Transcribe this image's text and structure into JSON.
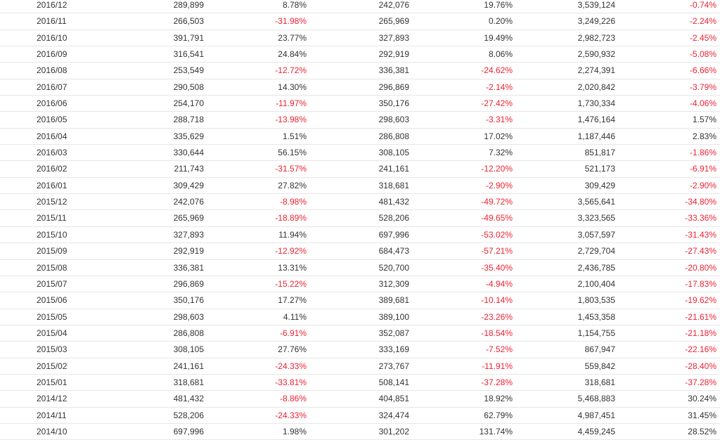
{
  "colors": {
    "text": "#333333",
    "negative": "#ee2233",
    "border": "#e6e6e6"
  },
  "rows": [
    [
      "2016/12",
      "289,899",
      "8.78%",
      "242,076",
      "19.76%",
      "3,539,124",
      "-0.74%"
    ],
    [
      "2016/11",
      "266,503",
      "-31.98%",
      "265,969",
      "0.20%",
      "3,249,226",
      "-2.24%"
    ],
    [
      "2016/10",
      "391,791",
      "23.77%",
      "327,893",
      "19.49%",
      "2,982,723",
      "-2.45%"
    ],
    [
      "2016/09",
      "316,541",
      "24.84%",
      "292,919",
      "8.06%",
      "2,590,932",
      "-5.08%"
    ],
    [
      "2016/08",
      "253,549",
      "-12.72%",
      "336,381",
      "-24.62%",
      "2,274,391",
      "-6.66%"
    ],
    [
      "2016/07",
      "290,508",
      "14.30%",
      "296,869",
      "-2.14%",
      "2,020,842",
      "-3.79%"
    ],
    [
      "2016/06",
      "254,170",
      "-11.97%",
      "350,176",
      "-27.42%",
      "1,730,334",
      "-4.06%"
    ],
    [
      "2016/05",
      "288,718",
      "-13.98%",
      "298,603",
      "-3.31%",
      "1,476,164",
      "1.57%"
    ],
    [
      "2016/04",
      "335,629",
      "1.51%",
      "286,808",
      "17.02%",
      "1,187,446",
      "2.83%"
    ],
    [
      "2016/03",
      "330,644",
      "56.15%",
      "308,105",
      "7.32%",
      "851,817",
      "-1.86%"
    ],
    [
      "2016/02",
      "211,743",
      "-31.57%",
      "241,161",
      "-12.20%",
      "521,173",
      "-6.91%"
    ],
    [
      "2016/01",
      "309,429",
      "27.82%",
      "318,681",
      "-2.90%",
      "309,429",
      "-2.90%"
    ],
    [
      "2015/12",
      "242,076",
      "-8.98%",
      "481,432",
      "-49.72%",
      "3,565,641",
      "-34.80%"
    ],
    [
      "2015/11",
      "265,969",
      "-18.89%",
      "528,206",
      "-49.65%",
      "3,323,565",
      "-33.36%"
    ],
    [
      "2015/10",
      "327,893",
      "11.94%",
      "697,996",
      "-53.02%",
      "3,057,597",
      "-31.43%"
    ],
    [
      "2015/09",
      "292,919",
      "-12.92%",
      "684,473",
      "-57.21%",
      "2,729,704",
      "-27.43%"
    ],
    [
      "2015/08",
      "336,381",
      "13.31%",
      "520,700",
      "-35.40%",
      "2,436,785",
      "-20.80%"
    ],
    [
      "2015/07",
      "296,869",
      "-15.22%",
      "312,309",
      "-4.94%",
      "2,100,404",
      "-17.83%"
    ],
    [
      "2015/06",
      "350,176",
      "17.27%",
      "389,681",
      "-10.14%",
      "1,803,535",
      "-19.62%"
    ],
    [
      "2015/05",
      "298,603",
      "4.11%",
      "389,100",
      "-23.26%",
      "1,453,358",
      "-21.61%"
    ],
    [
      "2015/04",
      "286,808",
      "-6.91%",
      "352,087",
      "-18.54%",
      "1,154,755",
      "-21.18%"
    ],
    [
      "2015/03",
      "308,105",
      "27.76%",
      "333,169",
      "-7.52%",
      "867,947",
      "-22.16%"
    ],
    [
      "2015/02",
      "241,161",
      "-24.33%",
      "273,767",
      "-11.91%",
      "559,842",
      "-28.40%"
    ],
    [
      "2015/01",
      "318,681",
      "-33.81%",
      "508,141",
      "-37.28%",
      "318,681",
      "-37.28%"
    ],
    [
      "2014/12",
      "481,432",
      "-8.86%",
      "404,851",
      "18.92%",
      "5,468,883",
      "30.24%"
    ],
    [
      "2014/11",
      "528,206",
      "-24.33%",
      "324,474",
      "62.79%",
      "4,987,451",
      "31.45%"
    ],
    [
      "2014/10",
      "697,996",
      "1.98%",
      "301,202",
      "131.74%",
      "4,459,245",
      "28.52%"
    ]
  ]
}
